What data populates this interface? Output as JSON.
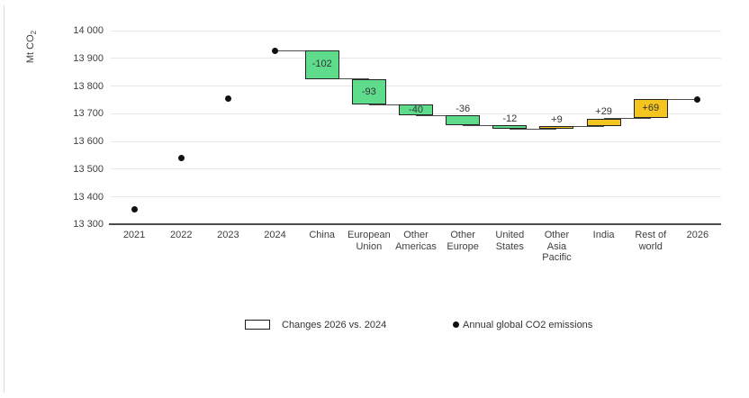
{
  "chart_data": {
    "type": "waterfall",
    "title": "",
    "ylabel": "Mt CO2",
    "ylabel_parts": {
      "main": "Mt CO",
      "sub": "2"
    },
    "ylim": [
      13300,
      14000
    ],
    "ytick_step": 100,
    "ytick_labels": [
      "14 000",
      "13 900",
      "13 800",
      "13 700",
      "13 600",
      "13 500",
      "13 400",
      "13 300"
    ],
    "grid": "horizontal",
    "legend_position": "bottom",
    "categories": [
      "2021",
      "2022",
      "2023",
      "2024",
      "China",
      "European\nUnion",
      "Other\nAmericas",
      "Other\nEurope",
      "United\nStates",
      "Other\nAsia\nPacific",
      "India",
      "Rest of\nworld",
      "2026"
    ],
    "dot_series": {
      "name": "Annual global CO2 emissions",
      "points": [
        {
          "category": "2021",
          "value": 13355
        },
        {
          "category": "2022",
          "value": 13540
        },
        {
          "category": "2023",
          "value": 13755
        },
        {
          "category": "2024",
          "value": 13928
        },
        {
          "category": "2026",
          "value": 13752
        }
      ]
    },
    "waterfall_series": {
      "name": "Changes 2026 vs. 2024",
      "start_category": "2024",
      "start_value": 13928,
      "end_category": "2026",
      "end_value": 13752,
      "changes": [
        {
          "category": "China",
          "value": -102
        },
        {
          "category": "European Union",
          "value": -93
        },
        {
          "category": "Other Americas",
          "value": -40
        },
        {
          "category": "Other Europe",
          "value": -36
        },
        {
          "category": "United States",
          "value": -12
        },
        {
          "category": "Other Asia Pacific",
          "value": 9
        },
        {
          "category": "India",
          "value": 29
        },
        {
          "category": "Rest of world",
          "value": 69
        }
      ]
    },
    "colors": {
      "decrease": "#5edc8b",
      "increase": "#f4c41f",
      "dot": "#111111",
      "bar_border": "#222222",
      "grid": "#e7e7e7",
      "axis": "#4d4d4d",
      "text": "#333333"
    },
    "legend": [
      {
        "marker": "box",
        "label": "Changes 2026 vs. 2024"
      },
      {
        "marker": "dot",
        "label": "Annual global CO2 emissions"
      }
    ]
  }
}
